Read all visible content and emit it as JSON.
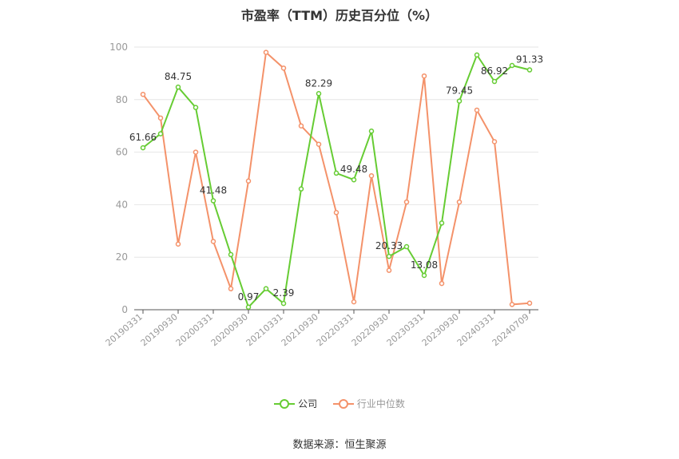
{
  "title": "市盈率（TTM）历史百分位（%）",
  "source": "数据来源：恒生聚源",
  "colors": {
    "company": "#66cc33",
    "industry": "#f4926a",
    "grid": "#e6e6e6",
    "axis": "#555555",
    "tick_text": "#999999",
    "label_text": "#333333"
  },
  "chart_data": {
    "type": "line",
    "title": "市盈率（TTM）历史百分位（%）",
    "ylim": [
      0,
      100
    ],
    "yticks": [
      0,
      20,
      40,
      60,
      80,
      100
    ],
    "grid": true,
    "legend_position": "bottom",
    "x": [
      "20190331",
      "20190630",
      "20190930",
      "20191231",
      "20200331",
      "20200630",
      "20200930",
      "20201231",
      "20210331",
      "20210630",
      "20210930",
      "20211231",
      "20220331",
      "20220630",
      "20220930",
      "20221231",
      "20230331",
      "20230630",
      "20230930",
      "20231231",
      "20240331",
      "20240630",
      "20240709"
    ],
    "x_tick_labels": [
      "20190331",
      "20190930",
      "20200331",
      "20200930",
      "20210331",
      "20210930",
      "20220331",
      "20220930",
      "20230331",
      "20230930",
      "20240331",
      "20240709"
    ],
    "series": [
      {
        "name": "公司",
        "values": [
          61.66,
          67,
          84.75,
          77,
          41.48,
          21,
          0.97,
          8,
          2.39,
          46,
          82.29,
          52,
          49.48,
          68,
          20.33,
          24,
          13.08,
          33,
          79.45,
          97,
          86.92,
          93,
          91.33
        ],
        "labels": [
          "61.66",
          "",
          "84.75",
          "",
          "41.48",
          "",
          "0.97",
          "",
          "2.39",
          "",
          "82.29",
          "",
          "49.48",
          "",
          "20.33",
          "",
          "13.08",
          "",
          "79.45",
          "",
          "86.92",
          "",
          "91.33"
        ]
      },
      {
        "name": "行业中位数",
        "values": [
          82,
          73,
          25,
          60,
          26,
          8,
          49,
          98,
          92,
          70,
          63,
          37,
          3,
          51,
          15,
          41,
          89,
          10,
          41,
          76,
          64,
          2,
          2.5
        ]
      }
    ]
  }
}
